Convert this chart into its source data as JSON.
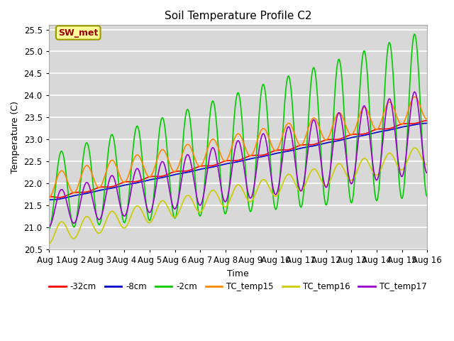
{
  "title": "Soil Temperature Profile C2",
  "xlabel": "Time",
  "ylabel": "Temperature (C)",
  "ylim": [
    20.5,
    25.6
  ],
  "xlim": [
    0,
    15
  ],
  "xtick_labels": [
    "Aug 1",
    "Aug 2",
    "Aug 3",
    "Aug 4",
    "Aug 5",
    "Aug 6",
    "Aug 7",
    "Aug 8",
    "Aug 9",
    "Aug 10",
    "Aug 11",
    "Aug 12",
    "Aug 13",
    "Aug 14",
    "Aug 15",
    "Aug 16"
  ],
  "bg_color": "#d8d8d8",
  "grid_color": "#ffffff",
  "annotation_text": "SW_met",
  "annotation_color": "#990000",
  "annotation_bg": "#ffff99",
  "annotation_border": "#999900",
  "legend_labels": [
    "-32cm",
    "-8cm",
    "-2cm",
    "TC_temp15",
    "TC_temp16",
    "TC_temp17"
  ],
  "line_colors": [
    "#ff0000",
    "#0000cc",
    "#00cc00",
    "#ff8800",
    "#cccc00",
    "#9900cc"
  ],
  "line_widths": [
    1.2,
    1.2,
    1.2,
    1.2,
    1.2,
    1.2
  ],
  "figsize": [
    6.4,
    4.8
  ],
  "dpi": 100
}
